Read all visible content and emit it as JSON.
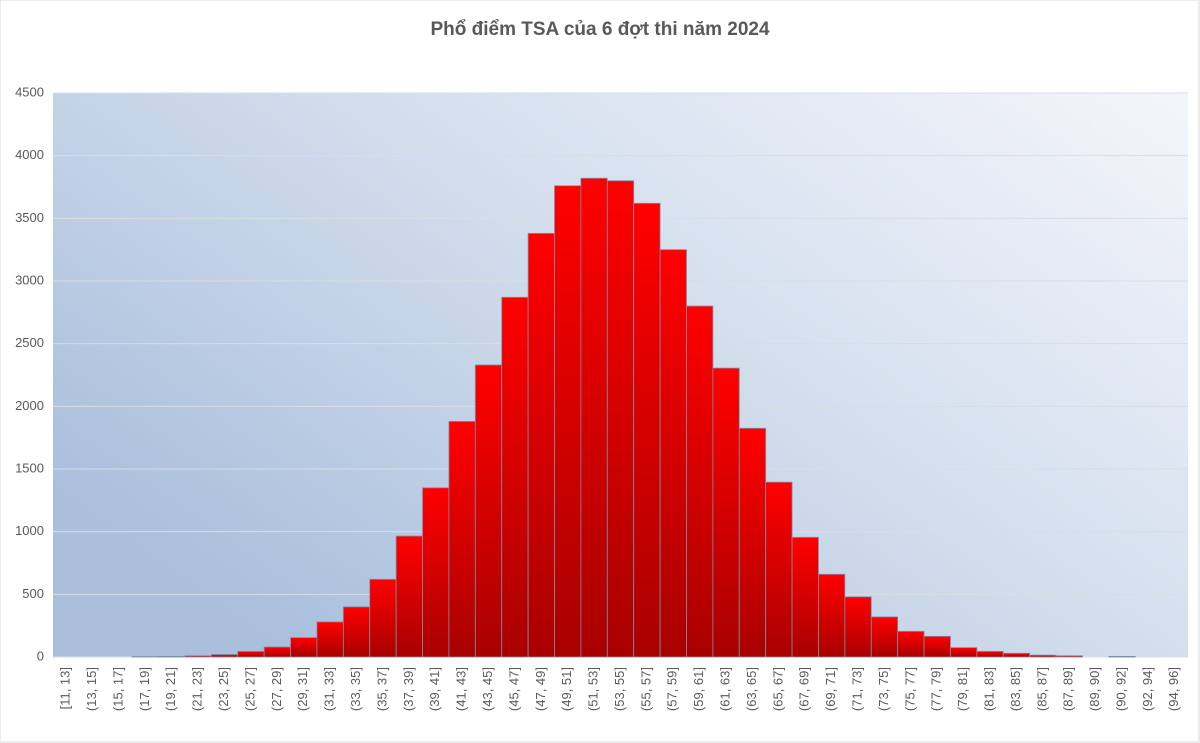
{
  "chart_data": {
    "type": "bar",
    "title": "Phổ điểm TSA của 6 đợt thi năm 2024",
    "categories": [
      "[11, 13]",
      "(13, 15]",
      "(15, 17]",
      "(17, 19]",
      "(19, 21]",
      "(21, 23]",
      "(23, 25]",
      "(25, 27]",
      "(27, 29]",
      "(29, 31]",
      "(31, 33]",
      "(33, 35]",
      "(35, 37]",
      "(37, 39]",
      "(39, 41]",
      "(41, 43]",
      "(43, 45]",
      "(45, 47]",
      "(47, 49]",
      "(49, 51]",
      "(51, 53]",
      "(53, 55]",
      "(55, 57]",
      "(57, 59]",
      "(59, 61]",
      "(61, 63]",
      "(63, 65]",
      "(65, 67]",
      "(67, 69]",
      "(69, 71]",
      "(71, 73]",
      "(73, 75]",
      "(75, 77]",
      "(77, 79]",
      "(79, 81]",
      "(81, 83]",
      "(83, 85]",
      "(85, 87]",
      "(87, 89]",
      "(89, 90]",
      "(90, 92]",
      "(92, 94]",
      "(94, 96]"
    ],
    "values": [
      0,
      0,
      0,
      3,
      5,
      10,
      20,
      45,
      80,
      155,
      280,
      400,
      620,
      965,
      1350,
      1880,
      2330,
      2870,
      3380,
      3760,
      3820,
      3800,
      3620,
      3250,
      2800,
      2305,
      1825,
      1395,
      955,
      660,
      480,
      320,
      205,
      165,
      75,
      45,
      30,
      15,
      10,
      0,
      5,
      0,
      0
    ],
    "color": "#ff0000",
    "ylim": [
      0,
      4500
    ],
    "yticks": [
      0,
      500,
      1000,
      1500,
      2000,
      2500,
      3000,
      3500,
      4000,
      4500
    ],
    "grid": true
  }
}
